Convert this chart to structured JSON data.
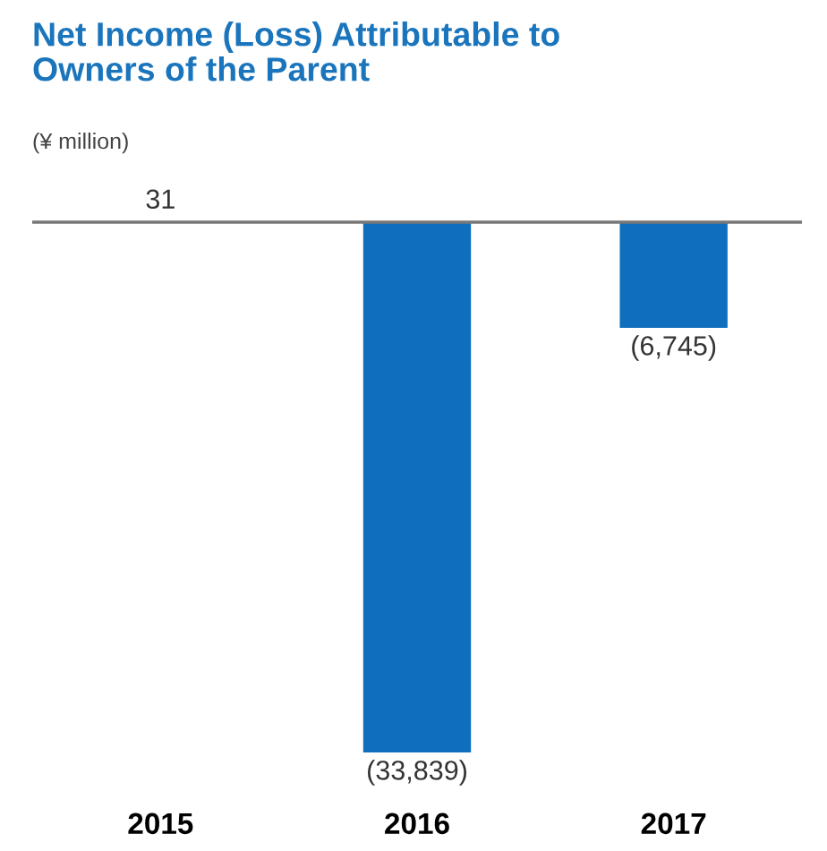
{
  "chart_data": {
    "type": "bar",
    "title": "Net Income (Loss) Attributable to\nOwners of the Parent",
    "subtitle": "(¥ million)",
    "categories": [
      "2015",
      "2016",
      "2017"
    ],
    "values": [
      31,
      -33839,
      -6745
    ],
    "value_labels": [
      "31",
      "(33,839)",
      "(6,745)"
    ],
    "color": "#0f6fbe",
    "grid": false,
    "legend": false
  }
}
